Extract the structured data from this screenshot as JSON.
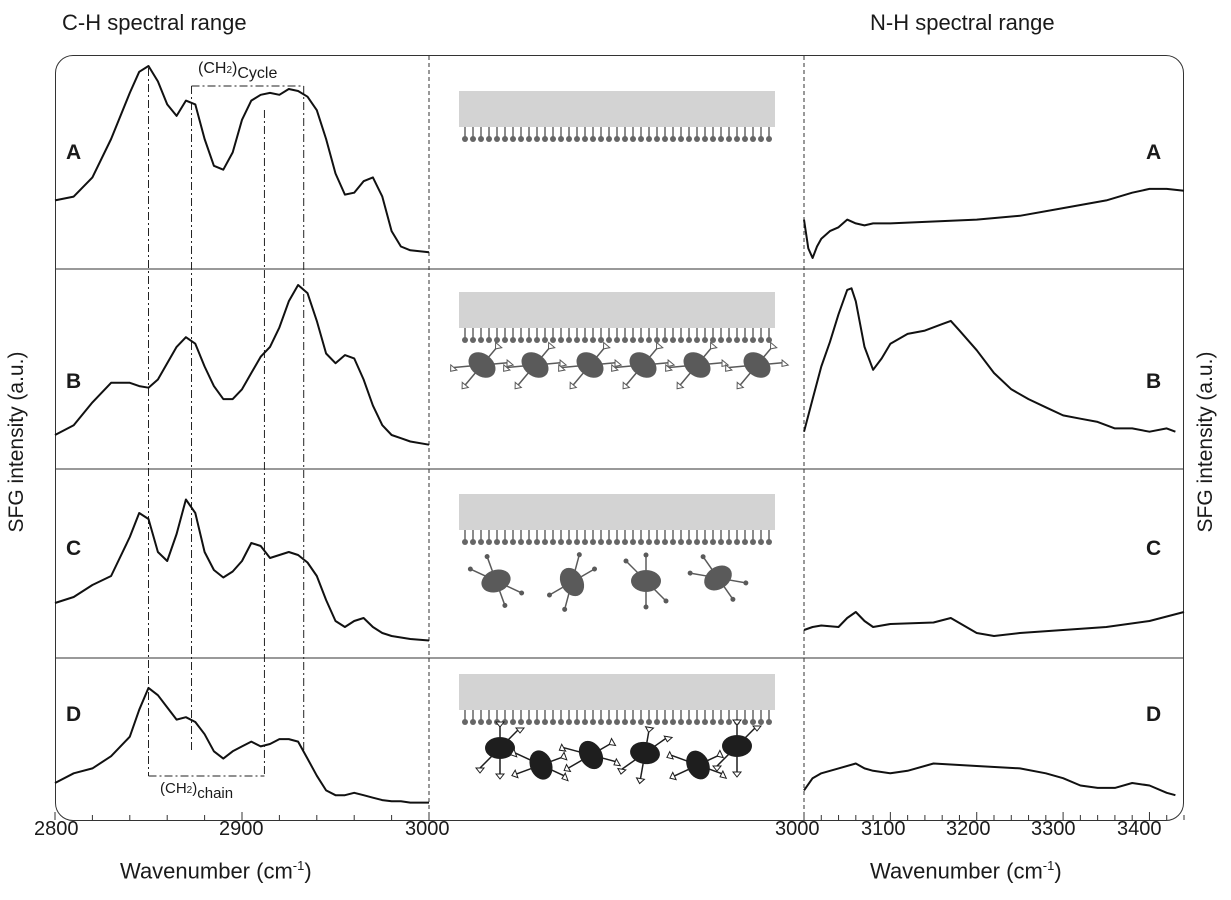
{
  "chart_data": [
    {
      "type": "line",
      "title": "C-H spectral range",
      "xlabel": "Wavenumber (cm-1)",
      "ylabel": "SFG intensity  (a.u.)",
      "xlim": [
        2800,
        3000
      ],
      "x_ticks": [
        "2800",
        "2900",
        "3000"
      ],
      "panels": [
        "A",
        "B",
        "C",
        "D"
      ],
      "annotations": [
        "(CH2)Cycle",
        "(CH2)chain"
      ],
      "reference_lines_x": [
        2850,
        2873,
        2912,
        2933
      ],
      "series": [
        {
          "panel": "A",
          "x": [
            2800,
            2810,
            2820,
            2830,
            2840,
            2845,
            2850,
            2855,
            2860,
            2865,
            2870,
            2875,
            2880,
            2885,
            2890,
            2895,
            2900,
            2905,
            2910,
            2915,
            2920,
            2925,
            2930,
            2935,
            2940,
            2945,
            2950,
            2955,
            2960,
            2965,
            2970,
            2975,
            2980,
            2985,
            2990,
            3000
          ],
          "y": [
            0.3,
            0.32,
            0.42,
            0.62,
            0.86,
            0.97,
            1.0,
            0.92,
            0.8,
            0.74,
            0.82,
            0.8,
            0.62,
            0.48,
            0.46,
            0.55,
            0.72,
            0.82,
            0.85,
            0.86,
            0.85,
            0.88,
            0.87,
            0.84,
            0.77,
            0.62,
            0.44,
            0.33,
            0.34,
            0.4,
            0.42,
            0.32,
            0.14,
            0.06,
            0.04,
            0.03
          ]
        },
        {
          "panel": "B",
          "x": [
            2800,
            2810,
            2820,
            2830,
            2840,
            2845,
            2850,
            2855,
            2860,
            2865,
            2870,
            2875,
            2880,
            2885,
            2890,
            2895,
            2900,
            2905,
            2910,
            2915,
            2920,
            2925,
            2930,
            2935,
            2940,
            2945,
            2950,
            2955,
            2960,
            2965,
            2970,
            2975,
            2980,
            2985,
            2990,
            3000
          ],
          "y": [
            0.08,
            0.14,
            0.28,
            0.4,
            0.4,
            0.38,
            0.37,
            0.42,
            0.52,
            0.62,
            0.68,
            0.64,
            0.5,
            0.38,
            0.3,
            0.3,
            0.36,
            0.46,
            0.56,
            0.62,
            0.74,
            0.9,
            1.0,
            0.95,
            0.78,
            0.58,
            0.52,
            0.57,
            0.55,
            0.42,
            0.26,
            0.14,
            0.08,
            0.06,
            0.04,
            0.02
          ]
        },
        {
          "panel": "C",
          "x": [
            2800,
            2810,
            2820,
            2830,
            2840,
            2845,
            2850,
            2855,
            2860,
            2865,
            2870,
            2875,
            2880,
            2885,
            2890,
            2895,
            2900,
            2905,
            2910,
            2915,
            2920,
            2925,
            2930,
            2935,
            2940,
            2945,
            2950,
            2955,
            2960,
            2965,
            2970,
            2975,
            2980,
            2985,
            2990,
            3000
          ],
          "y": [
            0.28,
            0.32,
            0.4,
            0.46,
            0.72,
            0.88,
            0.84,
            0.62,
            0.56,
            0.74,
            0.97,
            0.88,
            0.62,
            0.5,
            0.45,
            0.49,
            0.56,
            0.68,
            0.66,
            0.58,
            0.6,
            0.62,
            0.6,
            0.55,
            0.46,
            0.3,
            0.16,
            0.12,
            0.16,
            0.18,
            0.12,
            0.08,
            0.06,
            0.05,
            0.04,
            0.03
          ]
        },
        {
          "panel": "D",
          "x": [
            2800,
            2810,
            2820,
            2830,
            2840,
            2845,
            2850,
            2855,
            2860,
            2865,
            2870,
            2875,
            2880,
            2885,
            2890,
            2895,
            2900,
            2905,
            2910,
            2915,
            2920,
            2925,
            2930,
            2935,
            2940,
            2945,
            2950,
            2955,
            2960,
            2965,
            2970,
            2975,
            2980,
            2985,
            2990,
            3000
          ],
          "y": [
            0.18,
            0.26,
            0.3,
            0.4,
            0.56,
            0.78,
            0.96,
            0.9,
            0.8,
            0.7,
            0.72,
            0.68,
            0.58,
            0.44,
            0.38,
            0.44,
            0.48,
            0.52,
            0.48,
            0.5,
            0.54,
            0.54,
            0.52,
            0.38,
            0.24,
            0.12,
            0.08,
            0.08,
            0.1,
            0.08,
            0.06,
            0.04,
            0.03,
            0.03,
            0.02,
            0.02
          ]
        }
      ]
    },
    {
      "type": "line",
      "title": "N-H spectral range",
      "xlabel": "Wavenumber (cm-1)",
      "ylabel": "SFG intensity  (a.u.)",
      "xlim": [
        3000,
        3440
      ],
      "x_ticks": [
        "3000",
        "3100",
        "3200",
        "3300",
        "3400"
      ],
      "panels": [
        "A",
        "B",
        "C",
        "D"
      ],
      "series": [
        {
          "panel": "A",
          "x": [
            3000,
            3005,
            3010,
            3015,
            3020,
            3030,
            3040,
            3050,
            3060,
            3070,
            3080,
            3100,
            3150,
            3200,
            3250,
            3300,
            3350,
            3380,
            3400,
            3420,
            3440
          ],
          "y": [
            0.2,
            0.05,
            0.0,
            0.06,
            0.1,
            0.14,
            0.16,
            0.2,
            0.18,
            0.17,
            0.18,
            0.18,
            0.19,
            0.2,
            0.22,
            0.26,
            0.3,
            0.34,
            0.36,
            0.36,
            0.35
          ]
        },
        {
          "panel": "B",
          "x": [
            3000,
            3010,
            3020,
            3030,
            3040,
            3050,
            3055,
            3060,
            3070,
            3080,
            3090,
            3100,
            3120,
            3140,
            3160,
            3170,
            3180,
            3200,
            3220,
            3240,
            3260,
            3280,
            3300,
            3320,
            3340,
            3360,
            3380,
            3400,
            3420,
            3430
          ],
          "y": [
            0.1,
            0.3,
            0.5,
            0.65,
            0.82,
            0.97,
            0.98,
            0.9,
            0.62,
            0.48,
            0.55,
            0.64,
            0.7,
            0.72,
            0.76,
            0.78,
            0.72,
            0.6,
            0.46,
            0.36,
            0.3,
            0.25,
            0.2,
            0.18,
            0.16,
            0.12,
            0.12,
            0.1,
            0.12,
            0.1
          ]
        },
        {
          "panel": "C",
          "x": [
            3000,
            3010,
            3020,
            3040,
            3050,
            3060,
            3070,
            3080,
            3100,
            3150,
            3170,
            3200,
            3220,
            3250,
            3300,
            3350,
            3400,
            3440
          ],
          "y": [
            0.1,
            0.12,
            0.13,
            0.12,
            0.18,
            0.22,
            0.16,
            0.12,
            0.14,
            0.15,
            0.18,
            0.08,
            0.06,
            0.08,
            0.1,
            0.12,
            0.16,
            0.22
          ]
        },
        {
          "panel": "D",
          "x": [
            3000,
            3010,
            3020,
            3040,
            3060,
            3070,
            3080,
            3100,
            3120,
            3150,
            3200,
            3250,
            3280,
            3300,
            3320,
            3340,
            3360,
            3380,
            3400,
            3420,
            3430
          ],
          "y": [
            0.12,
            0.22,
            0.26,
            0.3,
            0.34,
            0.3,
            0.28,
            0.26,
            0.28,
            0.34,
            0.32,
            0.3,
            0.26,
            0.22,
            0.16,
            0.14,
            0.14,
            0.18,
            0.16,
            0.1,
            0.08
          ]
        }
      ]
    }
  ],
  "labels": {
    "title_left": "C-H spectral range",
    "title_right": "N-H spectral range",
    "ylabel": "SFG intensity  (a.u.)",
    "xlabel": "Wavenumber (cm",
    "xlabel_sup": "-1",
    "xlabel_end": ")",
    "ann_cycle_base": "(CH",
    "ann_cycle_sub": "2",
    "ann_cycle_close": ")",
    "ann_cycle_tail": "Cycle",
    "ann_chain_base": "(CH",
    "ann_chain_sub": "2",
    "ann_chain_close": ")",
    "ann_chain_tail": "chain",
    "panels": [
      "A",
      "B",
      "C",
      "D"
    ],
    "ticks_left": [
      "2800",
      "2900",
      "3000"
    ],
    "ticks_right": [
      "3000",
      "3100",
      "3200",
      "3300",
      "3400"
    ]
  },
  "colors": {
    "line": "#111111",
    "substrate": "#d3d3d3",
    "chain": "#666666",
    "protein_grey": "#5a5a5a",
    "protein_dark": "#1e1e1e"
  }
}
